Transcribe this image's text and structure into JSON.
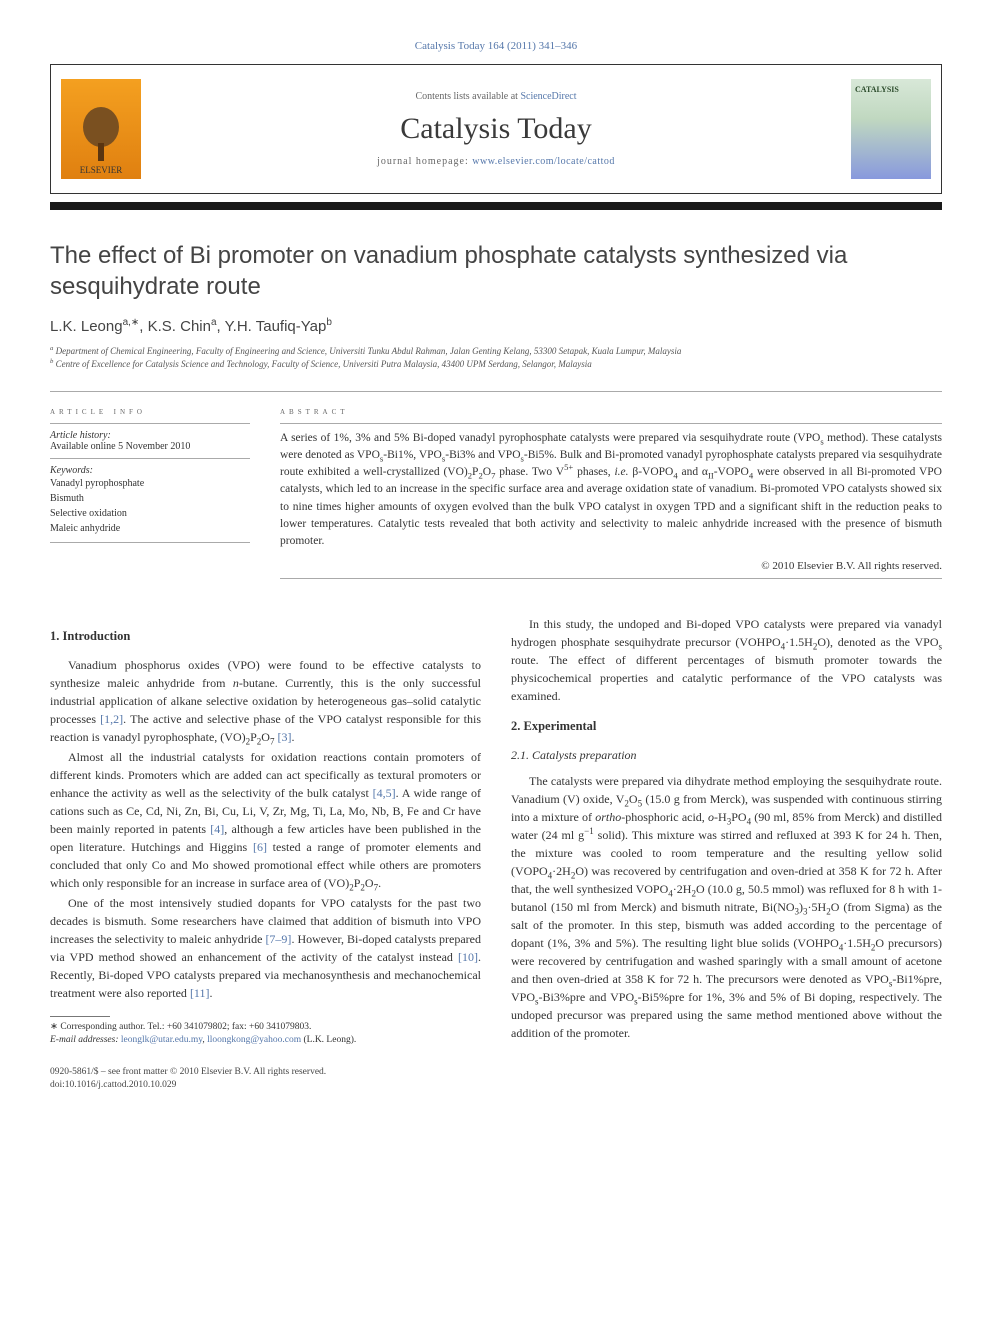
{
  "citation": "Catalysis Today 164 (2011) 341–346",
  "header": {
    "contents_prefix": "Contents lists available at ",
    "contents_link": "ScienceDirect",
    "journal_name": "Catalysis Today",
    "homepage_prefix": "journal homepage: ",
    "homepage_url": "www.elsevier.com/locate/cattod",
    "publisher": "ELSEVIER",
    "cover_label": "CATALYSIS"
  },
  "title": "The effect of Bi promoter on vanadium phosphate catalysts synthesized via sesquihydrate route",
  "authors_html": "L.K. Leong<sup>a,∗</sup>, K.S. Chin<sup>a</sup>, Y.H. Taufiq-Yap<sup>b</sup>",
  "affiliations": {
    "a": "Department of Chemical Engineering, Faculty of Engineering and Science, Universiti Tunku Abdul Rahman, Jalan Genting Kelang, 53300 Setapak, Kuala Lumpur, Malaysia",
    "b": "Centre of Excellence for Catalysis Science and Technology, Faculty of Science, Universiti Putra Malaysia, 43400 UPM Serdang, Selangor, Malaysia"
  },
  "article_info": {
    "heading": "ARTICLE INFO",
    "history_label": "Article history:",
    "history_value": "Available online 5 November 2010",
    "keywords_label": "Keywords:",
    "keywords": [
      "Vanadyl pyrophosphate",
      "Bismuth",
      "Selective oxidation",
      "Maleic anhydride"
    ]
  },
  "abstract": {
    "heading": "ABSTRACT",
    "text_html": "A series of 1%, 3% and 5% Bi-doped vanadyl pyrophosphate catalysts were prepared via sesquihydrate route (VPO<sub>s</sub> method). These catalysts were denoted as VPO<sub>s</sub>-Bi1%, VPO<sub>s</sub>-Bi3% and VPO<sub>s</sub>-Bi5%. Bulk and Bi-promoted vanadyl pyrophosphate catalysts prepared via sesquihydrate route exhibited a well-crystallized (VO)<sub>2</sub>P<sub>2</sub>O<sub>7</sub> phase. Two V<sup>5+</sup> phases, <i>i.e.</i> β-VOPO<sub>4</sub> and α<sub>II</sub>-VOPO<sub>4</sub> were observed in all Bi-promoted VPO catalysts, which led to an increase in the specific surface area and average oxidation state of vanadium. Bi-promoted VPO catalysts showed six to nine times higher amounts of oxygen evolved than the bulk VPO catalyst in oxygen TPD and a significant shift in the reduction peaks to lower temperatures. Catalytic tests revealed that both activity and selectivity to maleic anhydride increased with the presence of bismuth promoter.",
    "copyright": "© 2010 Elsevier B.V. All rights reserved."
  },
  "sections": {
    "intro_heading": "1. Introduction",
    "intro_p1": "Vanadium phosphorus oxides (VPO) were found to be effective catalysts to synthesize maleic anhydride from <i>n</i>-butane. Currently, this is the only successful industrial application of alkane selective oxidation by heterogeneous gas–solid catalytic processes <span class='ref-link'>[1,2]</span>. The active and selective phase of the VPO catalyst responsible for this reaction is vanadyl pyrophosphate, (VO)<sub>2</sub>P<sub>2</sub>O<sub>7</sub> <span class='ref-link'>[3]</span>.",
    "intro_p2": "Almost all the industrial catalysts for oxidation reactions contain promoters of different kinds. Promoters which are added can act specifically as textural promoters or enhance the activity as well as the selectivity of the bulk catalyst <span class='ref-link'>[4,5]</span>. A wide range of cations such as Ce, Cd, Ni, Zn, Bi, Cu, Li, V, Zr, Mg, Ti, La, Mo, Nb, B, Fe and Cr have been mainly reported in patents <span class='ref-link'>[4]</span>, although a few articles have been published in the open literature. Hutchings and Higgins <span class='ref-link'>[6]</span> tested a range of promoter elements and concluded that only Co and Mo showed promotional effect while others are promoters which only responsible for an increase in surface area of (VO)<sub>2</sub>P<sub>2</sub>O<sub>7</sub>.",
    "intro_p3": "One of the most intensively studied dopants for VPO catalysts for the past two decades is bismuth. Some researchers have claimed that addition of bismuth into VPO increases the selectivity to maleic anhydride <span class='ref-link'>[7–9]</span>. However, Bi-doped catalysts prepared via VPD method showed an enhancement of the activity of the catalyst instead <span class='ref-link'>[10]</span>. Recently, Bi-doped VPO catalysts prepared via mechanosynthesis and mechanochemical treatment were also reported <span class='ref-link'>[11]</span>.",
    "intro_p4": "In this study, the undoped and Bi-doped VPO catalysts were prepared via vanadyl hydrogen phosphate sesquihydrate precursor (VOHPO<sub>4</sub>·1.5H<sub>2</sub>O), denoted as the VPO<sub>s</sub> route. The effect of different percentages of bismuth promoter towards the physicochemical properties and catalytic performance of the VPO catalysts was examined.",
    "experimental_heading": "2. Experimental",
    "catalysts_heading": "2.1. Catalysts preparation",
    "catalysts_p1": "The catalysts were prepared via dihydrate method employing the sesquihydrate route. Vanadium (V) oxide, V<sub>2</sub>O<sub>5</sub> (15.0 g from Merck), was suspended with continuous stirring into a mixture of <i>ortho</i>-phosphoric acid, <i>o</i>-H<sub>3</sub>PO<sub>4</sub> (90 ml, 85% from Merck) and distilled water (24 ml g<sup>−1</sup> solid). This mixture was stirred and refluxed at 393 K for 24 h. Then, the mixture was cooled to room temperature and the resulting yellow solid (VOPO<sub>4</sub>·2H<sub>2</sub>O) was recovered by centrifugation and oven-dried at 358 K for 72 h. After that, the well synthesized VOPO<sub>4</sub>·2H<sub>2</sub>O (10.0 g, 50.5 mmol) was refluxed for 8 h with 1-butanol (150 ml from Merck) and bismuth nitrate, Bi(NO<sub>3</sub>)<sub>3</sub>·5H<sub>2</sub>O (from Sigma) as the salt of the promoter. In this step, bismuth was added according to the percentage of dopant (1%, 3% and 5%). The resulting light blue solids (VOHPO<sub>4</sub>·1.5H<sub>2</sub>O precursors) were recovered by centrifugation and washed sparingly with a small amount of acetone and then oven-dried at 358 K for 72 h. The precursors were denoted as VPO<sub>s</sub>-Bi1%pre, VPO<sub>s</sub>-Bi3%pre and VPO<sub>s</sub>-Bi5%pre for 1%, 3% and 5% of Bi doping, respectively. The undoped precursor was prepared using the same method mentioned above without the addition of the promoter."
  },
  "footnote": {
    "corr": "∗ Corresponding author. Tel.: +60 341079802; fax: +60 341079803.",
    "email_label": "E-mail addresses:",
    "email1": "leonglk@utar.edu.my",
    "email2": "lloongkong@yahoo.com",
    "email_suffix": "(L.K. Leong)."
  },
  "footer": {
    "line1": "0920-5861/$ – see front matter © 2010 Elsevier B.V. All rights reserved.",
    "line2": "doi:10.1016/j.cattod.2010.10.029"
  },
  "colors": {
    "link": "#5577aa",
    "text": "#333333",
    "heading": "#444444",
    "rule": "#aaaaaa"
  }
}
